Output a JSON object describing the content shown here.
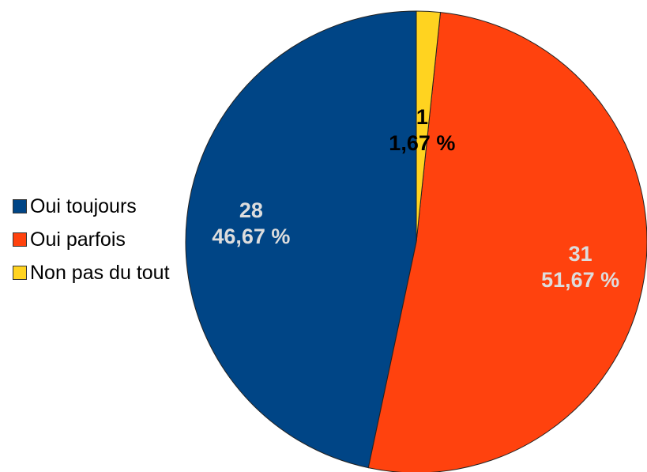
{
  "chart_data": {
    "type": "pie",
    "categories": [
      "Oui toujours",
      "Oui parfois",
      "Non pas du tout"
    ],
    "values": [
      28,
      31,
      1
    ],
    "percent_labels": [
      "46,67 %",
      "51,67 %",
      "1,67 %"
    ],
    "colors": [
      "#004586",
      "#ff420e",
      "#ffd320"
    ],
    "label_colors": [
      "#dddddd",
      "#dddddd",
      "#000000"
    ],
    "legend": "left"
  }
}
